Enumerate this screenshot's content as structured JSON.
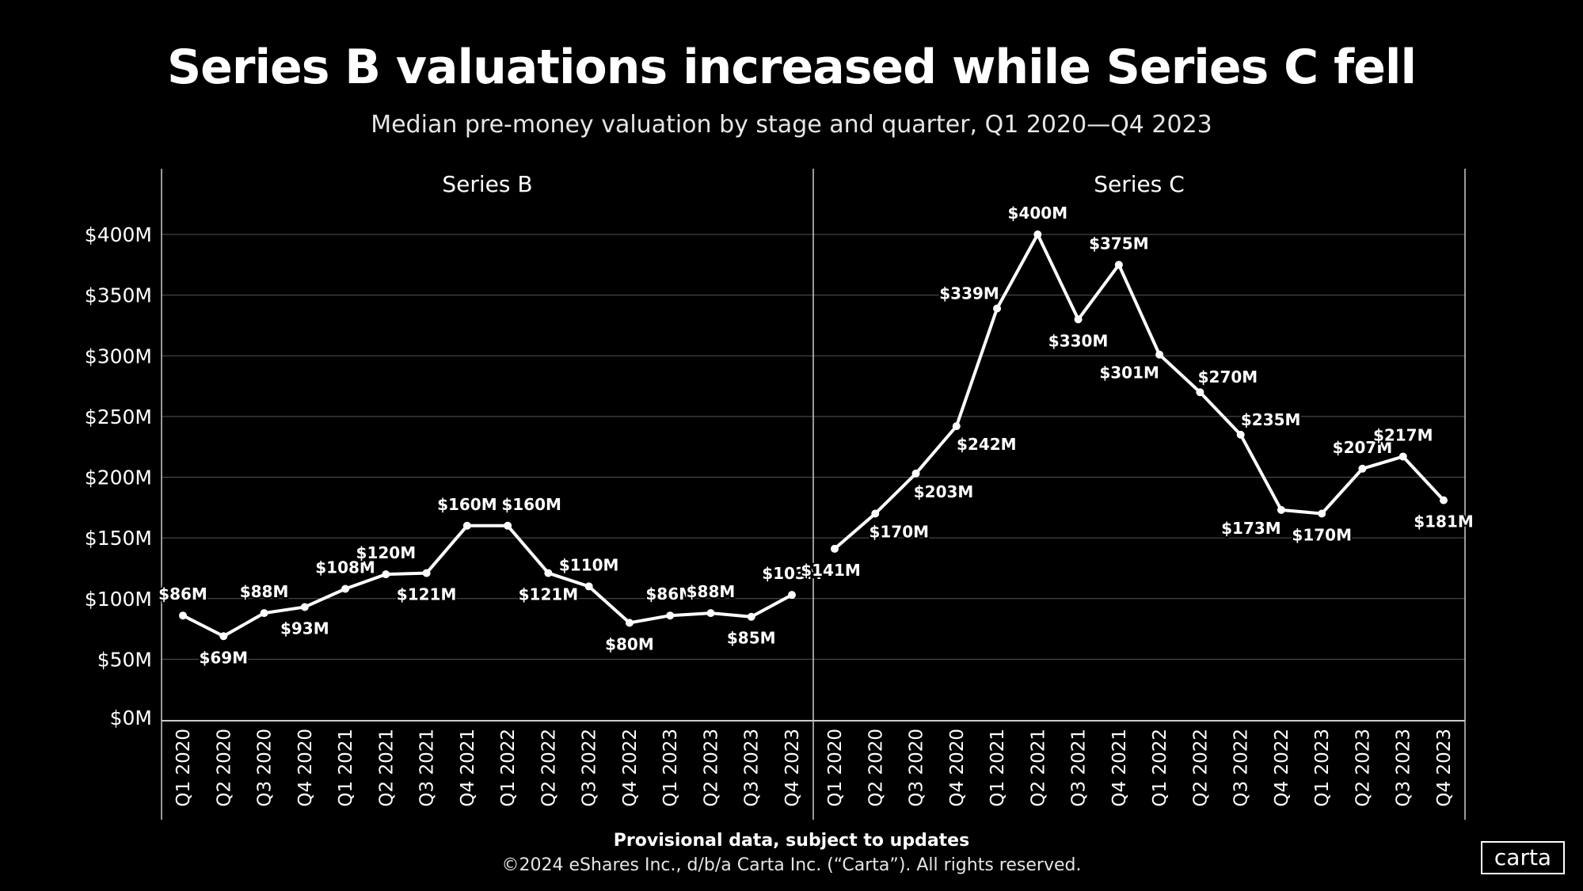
{
  "title": "Series B valuations increased while Series C fell",
  "subtitle": "Median pre-money valuation by stage and quarter, Q1 2020—Q4 2023",
  "footer": {
    "note": "Provisional data, subject to updates",
    "copyright": "©2024 eShares Inc., d/b/a Carta Inc. (“Carta”). All rights reserved."
  },
  "logo": "carta",
  "chart_data": {
    "type": "line",
    "ylim": [
      0,
      400
    ],
    "y_ticks": [
      "$0M",
      "$50M",
      "$100M",
      "$150M",
      "$200M",
      "$250M",
      "$300M",
      "$350M",
      "$400M"
    ],
    "grid": true,
    "line_color": "#ffffff",
    "background": "#000000",
    "categories": [
      "Q1 2020",
      "Q2 2020",
      "Q3 2020",
      "Q4 2020",
      "Q1 2021",
      "Q2 2021",
      "Q3 2021",
      "Q4 2021",
      "Q1 2022",
      "Q2 2022",
      "Q3 2022",
      "Q4 2022",
      "Q1 2023",
      "Q2 2023",
      "Q3 2023",
      "Q4 2023"
    ],
    "panels": [
      {
        "name": "Series B",
        "values": [
          86,
          69,
          88,
          93,
          108,
          120,
          121,
          160,
          160,
          121,
          110,
          80,
          86,
          88,
          85,
          103
        ],
        "labels": [
          "$86M",
          "$69M",
          "$88M",
          "$93M",
          "$108M",
          "$120M",
          "$121M",
          "$160M",
          "$160M",
          "$121M",
          "$110M",
          "$80M",
          "$86M",
          "$88M",
          "$85M",
          "$103M"
        ]
      },
      {
        "name": "Series C",
        "values": [
          141,
          170,
          203,
          242,
          339,
          400,
          330,
          375,
          301,
          270,
          235,
          173,
          170,
          207,
          217,
          181
        ],
        "labels": [
          "$141M",
          "$170M",
          "$203M",
          "$242M",
          "$339M",
          "$400M",
          "$330M",
          "$375M",
          "$301M",
          "$270M",
          "$235M",
          "$173M",
          "$170M",
          "$207M",
          "$217M",
          "$181M"
        ]
      }
    ]
  }
}
